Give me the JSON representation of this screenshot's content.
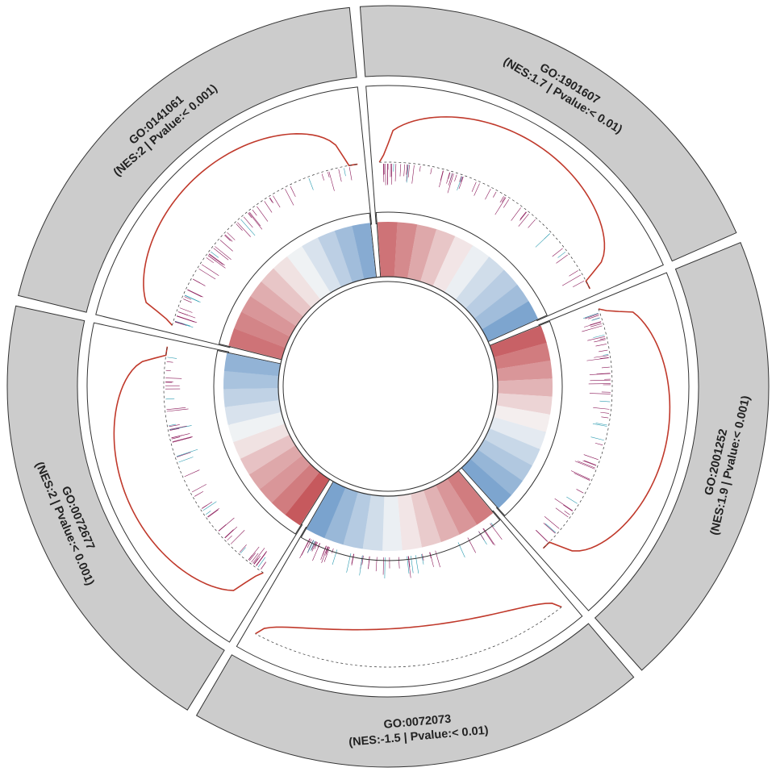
{
  "chart_data": {
    "type": "circular-gsea",
    "title": "",
    "colors": {
      "sector_band": "#cccccc",
      "running_score": "#c0392b",
      "positive": "#c0474c",
      "negative": "#5b8ec4",
      "hit_line": "#8b1a5a",
      "hit_line_alt": "#2a9bb0"
    },
    "sectors": [
      {
        "id": "GO:1901607",
        "label": "(NES:1.7 | Pvalue:< 0.01)",
        "nes": 1.7,
        "direction": "up",
        "heat_values": [
          0.75,
          0.62,
          0.45,
          0.28,
          0.1,
          -0.08,
          -0.25,
          -0.4,
          -0.55,
          -0.78
        ]
      },
      {
        "id": "GO:2001252",
        "label": "(NES:1.9 | Pvalue:< 0.001)",
        "nes": 1.9,
        "direction": "up",
        "heat_values": [
          0.85,
          0.7,
          0.55,
          0.38,
          0.2,
          0.05,
          -0.12,
          -0.3,
          -0.45,
          -0.62,
          -0.78
        ]
      },
      {
        "id": "GO:0072073",
        "label": "(NES:-1.5 | Pvalue:< 0.01)",
        "nes": -1.5,
        "direction": "down",
        "heat_values": [
          0.7,
          0.55,
          0.4,
          0.25,
          0.1,
          -0.08,
          -0.25,
          -0.42,
          -0.6,
          -0.8
        ]
      },
      {
        "id": "GO:0072677",
        "label": "(NES:2 | Pvalue:< 0.001)",
        "nes": 2,
        "direction": "up",
        "heat_values": [
          0.9,
          0.7,
          0.55,
          0.45,
          0.3,
          0.12,
          -0.05,
          -0.2,
          -0.35,
          -0.5,
          -0.65
        ]
      },
      {
        "id": "GO:0141061",
        "label": "(NES:2 | Pvalue:< 0.001)",
        "nes": 2,
        "direction": "up",
        "heat_values": [
          0.75,
          0.65,
          0.55,
          0.42,
          0.28,
          0.12,
          -0.05,
          -0.2,
          -0.38,
          -0.55,
          -0.72
        ]
      }
    ]
  }
}
